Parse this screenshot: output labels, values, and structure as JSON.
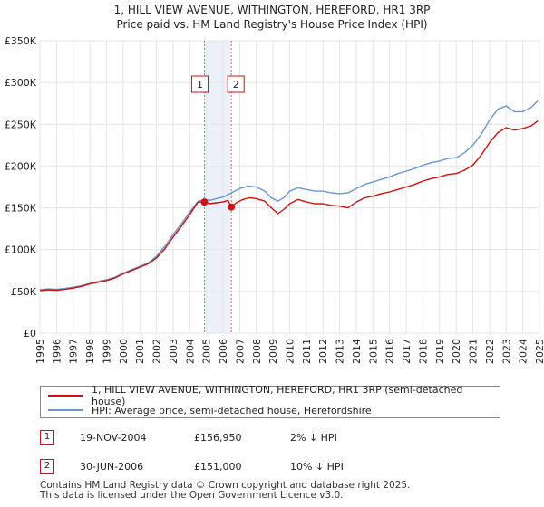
{
  "title": {
    "line1": "1, HILL VIEW AVENUE, WITHINGTON, HEREFORD, HR1 3RP",
    "line2": "Price paid vs. HM Land Registry's House Price Index (HPI)"
  },
  "chart_data": {
    "type": "line",
    "xlim": [
      1995,
      2025
    ],
    "ylim": [
      0,
      350000
    ],
    "y_ticks": [
      0,
      50000,
      100000,
      150000,
      200000,
      250000,
      300000,
      350000
    ],
    "y_tick_labels": [
      "£0",
      "£50K",
      "£100K",
      "£150K",
      "£200K",
      "£250K",
      "£300K",
      "£350K"
    ],
    "x_ticks": [
      1995,
      1996,
      1997,
      1998,
      1999,
      2000,
      2001,
      2002,
      2003,
      2004,
      2005,
      2006,
      2007,
      2008,
      2009,
      2010,
      2011,
      2012,
      2013,
      2014,
      2015,
      2016,
      2017,
      2018,
      2019,
      2020,
      2021,
      2022,
      2023,
      2024,
      2025
    ],
    "x_tick_labels": [
      "1995",
      "1996",
      "1997",
      "1998",
      "1999",
      "2000",
      "2001",
      "2002",
      "2003",
      "2004",
      "2005",
      "2006",
      "2007",
      "2008",
      "2009",
      "2010",
      "2011",
      "2012",
      "2013",
      "2014",
      "2015",
      "2016",
      "2017",
      "2018",
      "2019",
      "2020",
      "2021",
      "2022",
      "2023",
      "2024",
      "2025"
    ],
    "grid": true,
    "shaded_span": [
      2004.88,
      2006.5
    ],
    "series": [
      {
        "name": "1, HILL VIEW AVENUE, WITHINGTON, HEREFORD, HR1 3RP (semi-detached house)",
        "color": "#cc1111",
        "points": [
          [
            1995.0,
            51000
          ],
          [
            1995.5,
            52000
          ],
          [
            1996.0,
            51500
          ],
          [
            1996.5,
            52500
          ],
          [
            1997.0,
            54000
          ],
          [
            1997.5,
            56000
          ],
          [
            1998.0,
            59000
          ],
          [
            1998.5,
            61000
          ],
          [
            1999.0,
            63000
          ],
          [
            1999.5,
            66000
          ],
          [
            2000.0,
            71000
          ],
          [
            2000.5,
            75000
          ],
          [
            2001.0,
            79000
          ],
          [
            2001.5,
            83000
          ],
          [
            2002.0,
            90000
          ],
          [
            2002.5,
            101000
          ],
          [
            2003.0,
            115000
          ],
          [
            2003.5,
            128000
          ],
          [
            2004.0,
            142000
          ],
          [
            2004.5,
            157000
          ],
          [
            2004.88,
            156950
          ],
          [
            2005.2,
            155000
          ],
          [
            2005.6,
            156000
          ],
          [
            2006.0,
            157000
          ],
          [
            2006.3,
            159000
          ],
          [
            2006.5,
            151000
          ],
          [
            2006.8,
            156000
          ],
          [
            2007.2,
            160000
          ],
          [
            2007.6,
            162000
          ],
          [
            2008.0,
            161000
          ],
          [
            2008.5,
            158000
          ],
          [
            2008.9,
            150000
          ],
          [
            2009.3,
            143000
          ],
          [
            2009.7,
            149000
          ],
          [
            2010.0,
            155000
          ],
          [
            2010.5,
            160000
          ],
          [
            2011.0,
            157000
          ],
          [
            2011.5,
            155000
          ],
          [
            2012.0,
            155000
          ],
          [
            2012.5,
            153000
          ],
          [
            2013.0,
            152000
          ],
          [
            2013.5,
            150000
          ],
          [
            2014.0,
            157000
          ],
          [
            2014.5,
            162000
          ],
          [
            2015.0,
            164000
          ],
          [
            2015.5,
            167000
          ],
          [
            2016.0,
            169000
          ],
          [
            2016.5,
            172000
          ],
          [
            2017.0,
            175000
          ],
          [
            2017.5,
            178000
          ],
          [
            2018.0,
            182000
          ],
          [
            2018.5,
            185000
          ],
          [
            2019.0,
            187000
          ],
          [
            2019.5,
            190000
          ],
          [
            2020.0,
            191000
          ],
          [
            2020.5,
            195000
          ],
          [
            2021.0,
            201000
          ],
          [
            2021.5,
            213000
          ],
          [
            2022.0,
            228000
          ],
          [
            2022.5,
            240000
          ],
          [
            2023.0,
            246000
          ],
          [
            2023.5,
            243000
          ],
          [
            2024.0,
            245000
          ],
          [
            2024.5,
            248000
          ],
          [
            2024.9,
            254000
          ]
        ]
      },
      {
        "name": "HPI: Average price, semi-detached house, Herefordshire",
        "color": "#6a95cf",
        "points": [
          [
            1995.0,
            52000
          ],
          [
            1995.5,
            53000
          ],
          [
            1996.0,
            52500
          ],
          [
            1996.5,
            53500
          ],
          [
            1997.0,
            55000
          ],
          [
            1997.5,
            57000
          ],
          [
            1998.0,
            59500
          ],
          [
            1998.5,
            62000
          ],
          [
            1999.0,
            64000
          ],
          [
            1999.5,
            67000
          ],
          [
            2000.0,
            72000
          ],
          [
            2000.5,
            76000
          ],
          [
            2001.0,
            80000
          ],
          [
            2001.5,
            84000
          ],
          [
            2002.0,
            92000
          ],
          [
            2002.5,
            104000
          ],
          [
            2003.0,
            118000
          ],
          [
            2003.5,
            131000
          ],
          [
            2004.0,
            145000
          ],
          [
            2004.5,
            158000
          ],
          [
            2004.88,
            160000
          ],
          [
            2005.2,
            159000
          ],
          [
            2005.6,
            161000
          ],
          [
            2006.0,
            163000
          ],
          [
            2006.5,
            168000
          ],
          [
            2007.0,
            173000
          ],
          [
            2007.5,
            176000
          ],
          [
            2008.0,
            175000
          ],
          [
            2008.5,
            170000
          ],
          [
            2008.9,
            162000
          ],
          [
            2009.3,
            158000
          ],
          [
            2009.7,
            163000
          ],
          [
            2010.0,
            170000
          ],
          [
            2010.5,
            174000
          ],
          [
            2011.0,
            172000
          ],
          [
            2011.5,
            170000
          ],
          [
            2012.0,
            170000
          ],
          [
            2012.5,
            168000
          ],
          [
            2013.0,
            167000
          ],
          [
            2013.5,
            168000
          ],
          [
            2014.0,
            173000
          ],
          [
            2014.5,
            178000
          ],
          [
            2015.0,
            181000
          ],
          [
            2015.5,
            184000
          ],
          [
            2016.0,
            187000
          ],
          [
            2016.5,
            191000
          ],
          [
            2017.0,
            194000
          ],
          [
            2017.5,
            197000
          ],
          [
            2018.0,
            201000
          ],
          [
            2018.5,
            204000
          ],
          [
            2019.0,
            206000
          ],
          [
            2019.5,
            209000
          ],
          [
            2020.0,
            210000
          ],
          [
            2020.5,
            216000
          ],
          [
            2021.0,
            225000
          ],
          [
            2021.5,
            238000
          ],
          [
            2022.0,
            255000
          ],
          [
            2022.5,
            268000
          ],
          [
            2023.0,
            272000
          ],
          [
            2023.5,
            265000
          ],
          [
            2024.0,
            265000
          ],
          [
            2024.5,
            270000
          ],
          [
            2024.9,
            278000
          ]
        ]
      }
    ],
    "sale_markers": [
      {
        "label": "1",
        "x": 2004.88,
        "y": 156950
      },
      {
        "label": "2",
        "x": 2006.5,
        "y": 151000
      }
    ]
  },
  "legend": {
    "property_label": "1, HILL VIEW AVENUE, WITHINGTON, HEREFORD, HR1 3RP (semi-detached house)",
    "hpi_label": "HPI: Average price, semi-detached house, Herefordshire",
    "property_color": "#cc1111",
    "hpi_color": "#6a95cf"
  },
  "sales": [
    {
      "num": "1",
      "date": "19-NOV-2004",
      "price": "£156,950",
      "hpi": "2% ↓ HPI"
    },
    {
      "num": "2",
      "date": "30-JUN-2006",
      "price": "£151,000",
      "hpi": "10% ↓ HPI"
    }
  ],
  "footer": {
    "line1": "Contains HM Land Registry data © Crown copyright and database right 2025.",
    "line2": "This data is licensed under the Open Government Licence v3.0."
  }
}
